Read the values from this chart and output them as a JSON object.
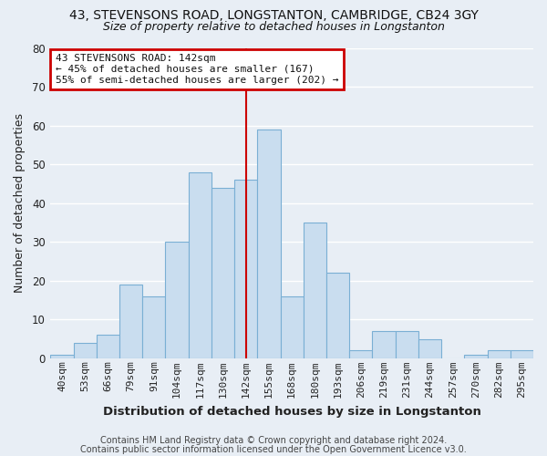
{
  "title1": "43, STEVENSONS ROAD, LONGSTANTON, CAMBRIDGE, CB24 3GY",
  "title2": "Size of property relative to detached houses in Longstanton",
  "xlabel": "Distribution of detached houses by size in Longstanton",
  "ylabel": "Number of detached properties",
  "footer1": "Contains HM Land Registry data © Crown copyright and database right 2024.",
  "footer2": "Contains public sector information licensed under the Open Government Licence v3.0.",
  "bin_labels": [
    "40sqm",
    "53sqm",
    "66sqm",
    "79sqm",
    "91sqm",
    "104sqm",
    "117sqm",
    "130sqm",
    "142sqm",
    "155sqm",
    "168sqm",
    "180sqm",
    "193sqm",
    "206sqm",
    "219sqm",
    "231sqm",
    "244sqm",
    "257sqm",
    "270sqm",
    "282sqm",
    "295sqm"
  ],
  "bar_values": [
    1,
    4,
    6,
    19,
    16,
    30,
    48,
    44,
    46,
    59,
    16,
    35,
    22,
    2,
    7,
    7,
    5,
    0,
    1,
    2,
    2
  ],
  "bar_color": "#c9ddef",
  "bar_edge_color": "#7aafd4",
  "vline_x_index": 8,
  "vline_color": "#cc0000",
  "annotation_title": "43 STEVENSONS ROAD: 142sqm",
  "annotation_line1": "← 45% of detached houses are smaller (167)",
  "annotation_line2": "55% of semi-detached houses are larger (202) →",
  "annotation_box_color": "#cc0000",
  "annotation_text_color": "#111111",
  "ylim": [
    0,
    80
  ],
  "yticks": [
    0,
    10,
    20,
    30,
    40,
    50,
    60,
    70,
    80
  ],
  "bg_color": "#e8eef5",
  "grid_color": "#ffffff",
  "title_fontsize": 10,
  "subtitle_fontsize": 9,
  "ylabel_fontsize": 9,
  "xlabel_fontsize": 9.5,
  "tick_fontsize": 8,
  "footer_fontsize": 7
}
